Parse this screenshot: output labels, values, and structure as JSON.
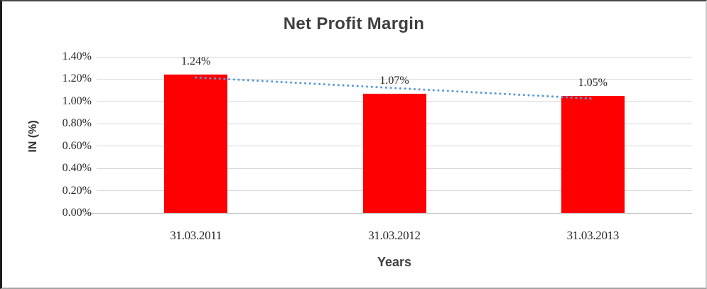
{
  "chart_data": {
    "type": "bar",
    "title": "Net Profit Margin",
    "categories": [
      "31.03.2011",
      "31.03.2012",
      "31.03.2013"
    ],
    "values": [
      1.24,
      1.07,
      1.05
    ],
    "data_labels": [
      "1.24%",
      "1.07%",
      "1.05%"
    ],
    "xlabel": "Years",
    "ylabel": "IN (%)",
    "ylim": [
      0,
      1.4
    ],
    "ytick_step": 0.2,
    "ytick_labels_top_to_bottom": [
      "1.40%",
      "1.20%",
      "1.00%",
      "0.80%",
      "0.60%",
      "0.40%",
      "0.20%",
      "0.00%"
    ],
    "grid": true,
    "legend": "none",
    "bar_color": "#FF0000",
    "grid_color": "#D6D6D6",
    "text_color": "#262626",
    "title_color": "#3F3F3F",
    "trendline": {
      "type": "linear",
      "style": "dotted",
      "color": "#5B9BD5",
      "fitted_endpoints": [
        1.215,
        1.025
      ]
    }
  }
}
